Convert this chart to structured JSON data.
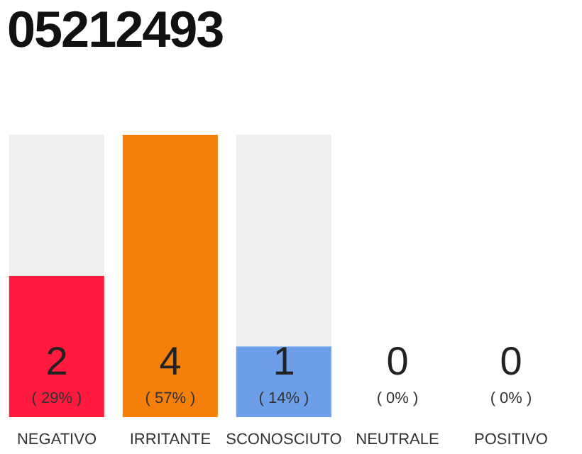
{
  "chart_data": {
    "type": "bar",
    "title": "05212493",
    "categories": [
      "NEGATIVO",
      "IRRITANTE",
      "SCONOSCIUTO",
      "NEUTRALE",
      "POSITIVO"
    ],
    "values": [
      2,
      4,
      1,
      0,
      0
    ],
    "data_labels": true,
    "colors": [
      "#ff1a3e",
      "#f47f0a",
      "#6d9ee8",
      null,
      null
    ],
    "annotations": [
      "( 29% )",
      "( 57% )",
      "( 14% )",
      "( 0% )",
      "( 0% )"
    ]
  }
}
